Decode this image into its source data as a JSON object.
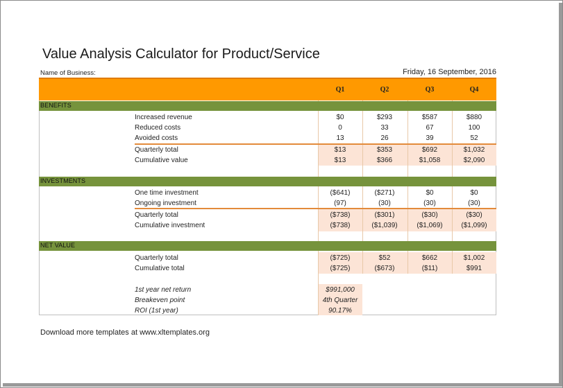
{
  "title": "Value Analysis Calculator for Product/Service",
  "business_label": "Name of Business:",
  "date": "Friday, 16 September, 2016",
  "quarters": [
    "Q1",
    "Q2",
    "Q3",
    "Q4"
  ],
  "sections": {
    "benefits": {
      "label": "BENEFITS",
      "rows": [
        {
          "label": "Increased revenue",
          "values": [
            "$0",
            "$293",
            "$587",
            "$880"
          ]
        },
        {
          "label": "Reduced costs",
          "values": [
            "0",
            "33",
            "67",
            "100"
          ]
        },
        {
          "label": "Avoided costs",
          "values": [
            "13",
            "26",
            "39",
            "52"
          ]
        }
      ],
      "totals": [
        {
          "label": "Quarterly total",
          "values": [
            "$13",
            "$353",
            "$692",
            "$1,032"
          ]
        },
        {
          "label": "Cumulative value",
          "values": [
            "$13",
            "$366",
            "$1,058",
            "$2,090"
          ]
        }
      ]
    },
    "investments": {
      "label": "INVESTMENTS",
      "rows": [
        {
          "label": "One time investment",
          "values": [
            "($641)",
            "($271)",
            "$0",
            "$0"
          ]
        },
        {
          "label": "Ongoing investment",
          "values": [
            "(97)",
            "(30)",
            "(30)",
            "(30)"
          ]
        }
      ],
      "totals": [
        {
          "label": "Quarterly total",
          "values": [
            "($738)",
            "($301)",
            "($30)",
            "($30)"
          ]
        },
        {
          "label": "Cumulative investment",
          "values": [
            "($738)",
            "($1,039)",
            "($1,069)",
            "($1,099)"
          ]
        }
      ]
    },
    "net_value": {
      "label": "NET VALUE",
      "totals": [
        {
          "label": "Quarterly total",
          "values": [
            "($725)",
            "$52",
            "$662",
            "$1,002"
          ]
        },
        {
          "label": "Cumulative total",
          "values": [
            "($725)",
            "($673)",
            "($11)",
            "$991"
          ]
        }
      ]
    }
  },
  "summary": [
    {
      "label": "1st year net return",
      "value": "$991,000"
    },
    {
      "label": "Breakeven point",
      "value": "4th Quarter"
    },
    {
      "label": "ROI (1st year)",
      "value": "90.17%"
    }
  ],
  "footer": "Download more templates at www.xltemplates.org"
}
